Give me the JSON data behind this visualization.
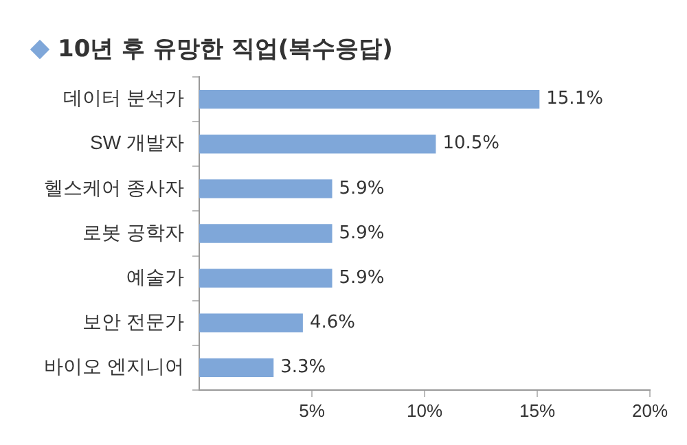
{
  "chart_data": {
    "type": "bar",
    "orientation": "horizontal",
    "title": "10년 후 유망한 직업(복수응답)",
    "categories": [
      "데이터 분석가",
      "SW 개발자",
      "헬스케어 종사자",
      "로봇 공학자",
      "예술가",
      "보안 전문가",
      "바이오 엔지니어"
    ],
    "values": [
      15.1,
      10.5,
      5.9,
      5.9,
      5.9,
      4.6,
      3.3
    ],
    "value_labels": [
      "15.1%",
      "10.5%",
      "5.9%",
      "5.9%",
      "5.9%",
      "4.6%",
      "3.3%"
    ],
    "color": "#7fa7d9",
    "xlim": [
      0,
      20
    ],
    "xticks": [
      {
        "value": 5,
        "label": "5%"
      },
      {
        "value": 10,
        "label": "10%"
      },
      {
        "value": 15,
        "label": "15%"
      },
      {
        "value": 20,
        "label": "20%"
      }
    ],
    "grid": false,
    "legend": false
  }
}
